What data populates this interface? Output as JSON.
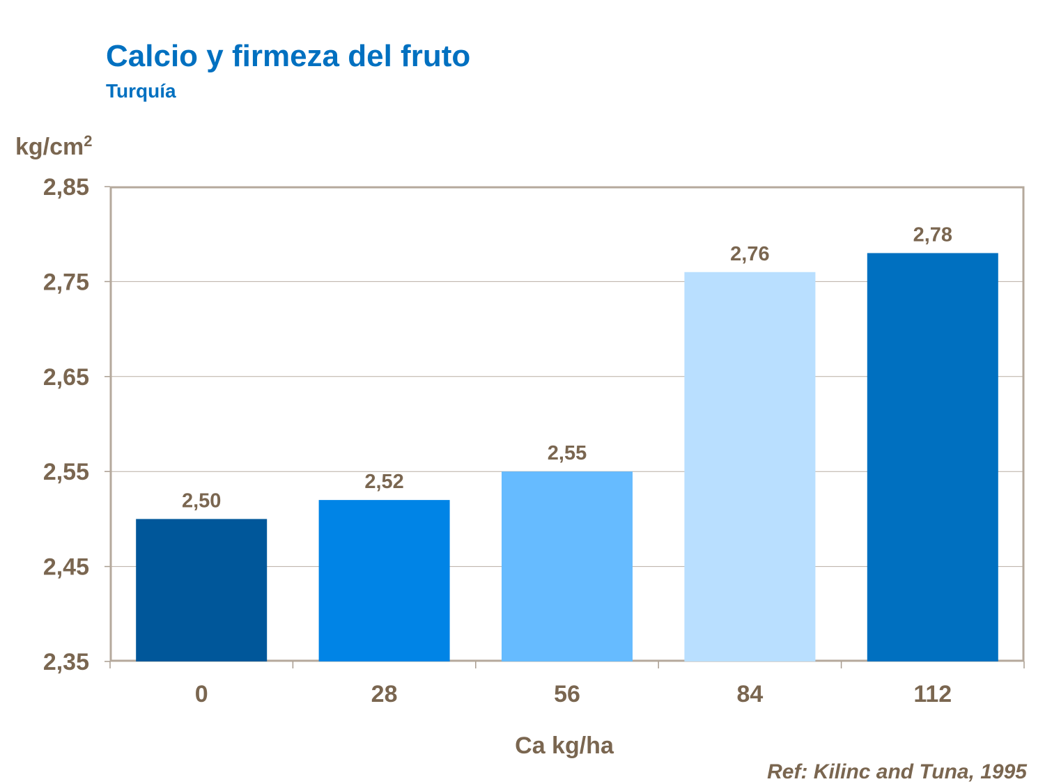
{
  "chart_data": {
    "type": "bar",
    "title": "Calcio y firmeza del fruto",
    "subtitle": "Turquía",
    "xlabel": "Ca kg/ha",
    "ylabel": "kg/cm",
    "ylabel_superscript": "2",
    "categories": [
      "0",
      "28",
      "56",
      "84",
      "112"
    ],
    "values": [
      2.5,
      2.52,
      2.55,
      2.76,
      2.78
    ],
    "data_labels": [
      "2,50",
      "2,52",
      "2,55",
      "2,76",
      "2,78"
    ],
    "bar_colors": [
      "#00579A",
      "#0084E6",
      "#66BBFF",
      "#B9DFFF",
      "#0070C0"
    ],
    "ylim": [
      2.35,
      2.85
    ],
    "yticks": [
      2.35,
      2.45,
      2.55,
      2.65,
      2.75,
      2.85
    ],
    "ytick_labels": [
      "2,35",
      "2,45",
      "2,55",
      "2,65",
      "2,75",
      "2,85"
    ],
    "grid": true,
    "legend": "none",
    "reference": "Ref: Kilinc and Tuna, 1995"
  }
}
